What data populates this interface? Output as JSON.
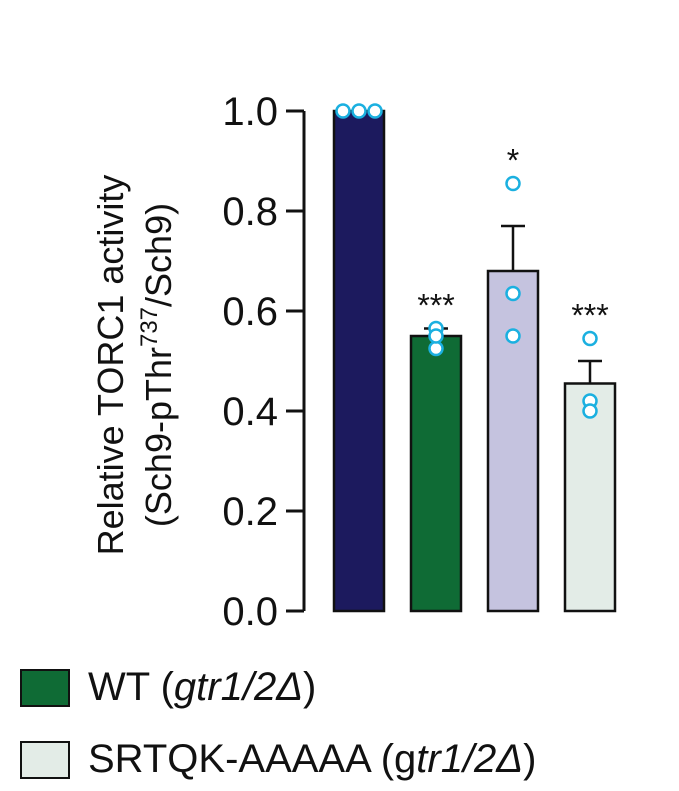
{
  "chart_data": {
    "type": "bar",
    "ylabel_line1": "Relative TORC1 activity",
    "ylabel_line2_prefix": "(Sch9-pThr",
    "ylabel_line2_sup": "737",
    "ylabel_line2_suffix": "/Sch9)",
    "ylim": [
      0,
      1.0
    ],
    "yticks": [
      "0.0",
      "0.2",
      "0.4",
      "0.6",
      "0.8",
      "1.0"
    ],
    "ytick_values": [
      0,
      0.2,
      0.4,
      0.6,
      0.8,
      1.0
    ],
    "grid": false,
    "bars": [
      {
        "value": 1.0,
        "error": 0.0,
        "color": "#1c1a5e",
        "significance": "",
        "points": [
          1.0,
          1.0,
          1.0
        ]
      },
      {
        "value": 0.55,
        "error": 0.015,
        "color": "#0f6b35",
        "significance": "***",
        "points": [
          0.565,
          0.525,
          0.55
        ]
      },
      {
        "value": 0.68,
        "error": 0.09,
        "color": "#c5c3df",
        "significance": "*",
        "points": [
          0.855,
          0.635,
          0.55
        ]
      },
      {
        "value": 0.455,
        "error": 0.045,
        "color": "#e3ece7",
        "significance": "***",
        "points": [
          0.545,
          0.42,
          0.4
        ]
      }
    ],
    "point_color": "#1bb0e0"
  },
  "legend": {
    "items": [
      {
        "label_prefix": "WT (",
        "label_italic": "gtr1/2Δ",
        "label_suffix": ")",
        "color": "#0f6b35"
      },
      {
        "label_prefix": "SRTQK-AAAAA  (g",
        "label_italic": "tr1/2Δ",
        "label_suffix": ")",
        "color": "#e3ece7"
      }
    ]
  }
}
